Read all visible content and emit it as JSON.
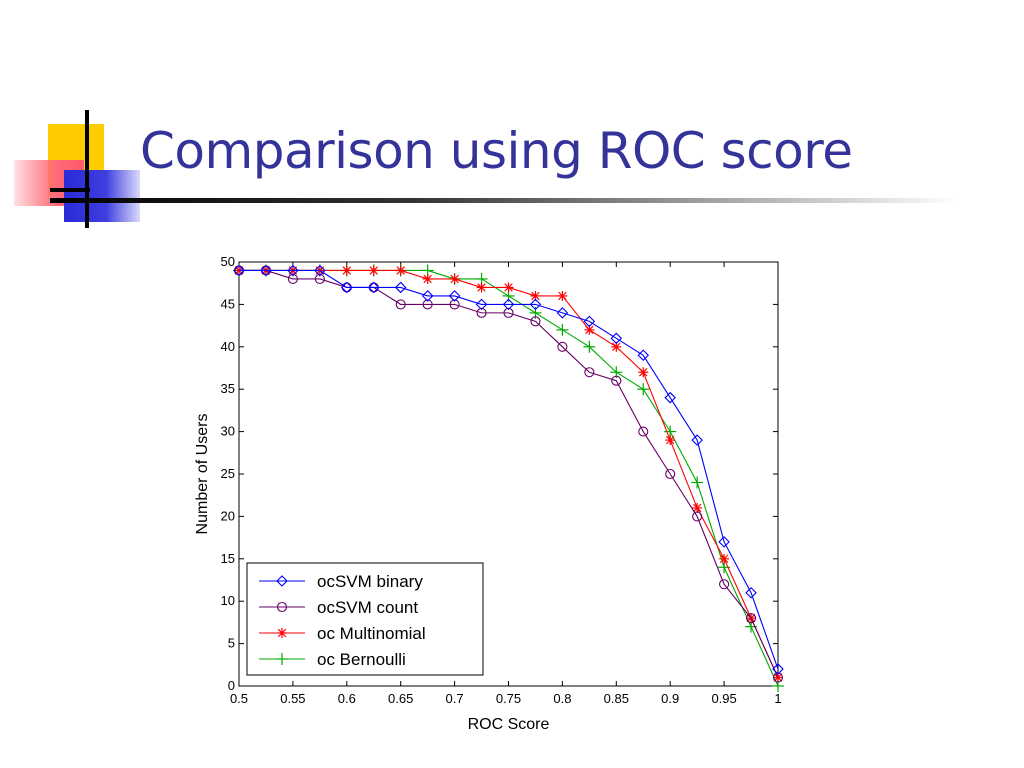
{
  "slide": {
    "title": "Comparison using ROC score"
  },
  "chart_data": {
    "type": "line",
    "title": "",
    "xlabel": "ROC Score",
    "ylabel": "Number of Users",
    "xlim": [
      0.5,
      1
    ],
    "ylim": [
      0,
      50
    ],
    "xticks": [
      "0.5",
      "0.55",
      "0.6",
      "0.65",
      "0.7",
      "0.75",
      "0.8",
      "0.85",
      "0.9",
      "0.95",
      "1"
    ],
    "yticks": [
      "0",
      "5",
      "10",
      "15",
      "20",
      "25",
      "30",
      "35",
      "40",
      "45",
      "50"
    ],
    "grid": false,
    "legend": "bottom-left",
    "x": [
      0.5,
      0.525,
      0.55,
      0.575,
      0.6,
      0.625,
      0.65,
      0.675,
      0.7,
      0.725,
      0.75,
      0.775,
      0.8,
      0.825,
      0.85,
      0.875,
      0.9,
      0.925,
      0.95,
      0.975,
      1.0
    ],
    "series": [
      {
        "name": "ocSVM binary",
        "color": "#0000ff",
        "marker": "diamond",
        "values": [
          49,
          49,
          49,
          49,
          47,
          47,
          47,
          46,
          46,
          45,
          45,
          45,
          44,
          43,
          41,
          39,
          34,
          29,
          17,
          11,
          2
        ]
      },
      {
        "name": "ocSVM count",
        "color": "#660066",
        "marker": "circle",
        "values": [
          49,
          49,
          48,
          48,
          47,
          47,
          45,
          45,
          45,
          44,
          44,
          43,
          40,
          37,
          36,
          30,
          25,
          20,
          12,
          8,
          1
        ]
      },
      {
        "name": "oc Multinomial",
        "color": "#ff0000",
        "marker": "star",
        "values": [
          49,
          49,
          49,
          49,
          49,
          49,
          49,
          48,
          48,
          47,
          47,
          46,
          46,
          42,
          40,
          37,
          29,
          21,
          15,
          8,
          1
        ]
      },
      {
        "name": "oc Bernoulli",
        "color": "#00aa00",
        "marker": "plus",
        "values": [
          49,
          49,
          49,
          49,
          49,
          49,
          49,
          49,
          48,
          48,
          46,
          44,
          42,
          40,
          37,
          35,
          30,
          24,
          14,
          7,
          0
        ]
      }
    ]
  }
}
